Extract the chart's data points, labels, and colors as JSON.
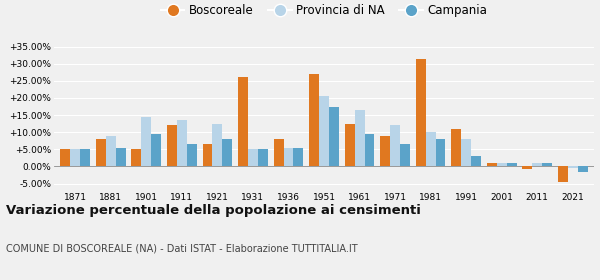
{
  "years": [
    1871,
    1881,
    1901,
    1911,
    1921,
    1931,
    1936,
    1951,
    1961,
    1971,
    1981,
    1991,
    2001,
    2011,
    2021
  ],
  "boscoreale": [
    5.0,
    8.0,
    5.0,
    12.0,
    6.5,
    26.0,
    8.0,
    27.0,
    12.5,
    9.0,
    31.5,
    11.0,
    1.0,
    -0.8,
    -4.5
  ],
  "provincia_na": [
    5.0,
    9.0,
    14.5,
    13.5,
    12.5,
    5.0,
    5.5,
    20.5,
    16.5,
    12.0,
    10.0,
    8.0,
    1.0,
    1.0,
    -0.5
  ],
  "campania": [
    5.0,
    5.5,
    9.5,
    6.5,
    8.0,
    5.0,
    5.5,
    17.5,
    9.5,
    6.5,
    8.0,
    3.0,
    1.0,
    1.0,
    -1.5
  ],
  "color_boscoreale": "#e07820",
  "color_provincia": "#b8d4e8",
  "color_campania": "#5ba3c9",
  "ylim": [
    -7.0,
    38.0
  ],
  "yticks": [
    -5.0,
    0.0,
    5.0,
    10.0,
    15.0,
    20.0,
    25.0,
    30.0,
    35.0
  ],
  "title": "Variazione percentuale della popolazione ai censimenti",
  "subtitle": "COMUNE DI BOSCOREALE (NA) - Dati ISTAT - Elaborazione TUTTITALIA.IT",
  "legend_labels": [
    "Boscoreale",
    "Provincia di NA",
    "Campania"
  ],
  "background_color": "#f0f0f0"
}
